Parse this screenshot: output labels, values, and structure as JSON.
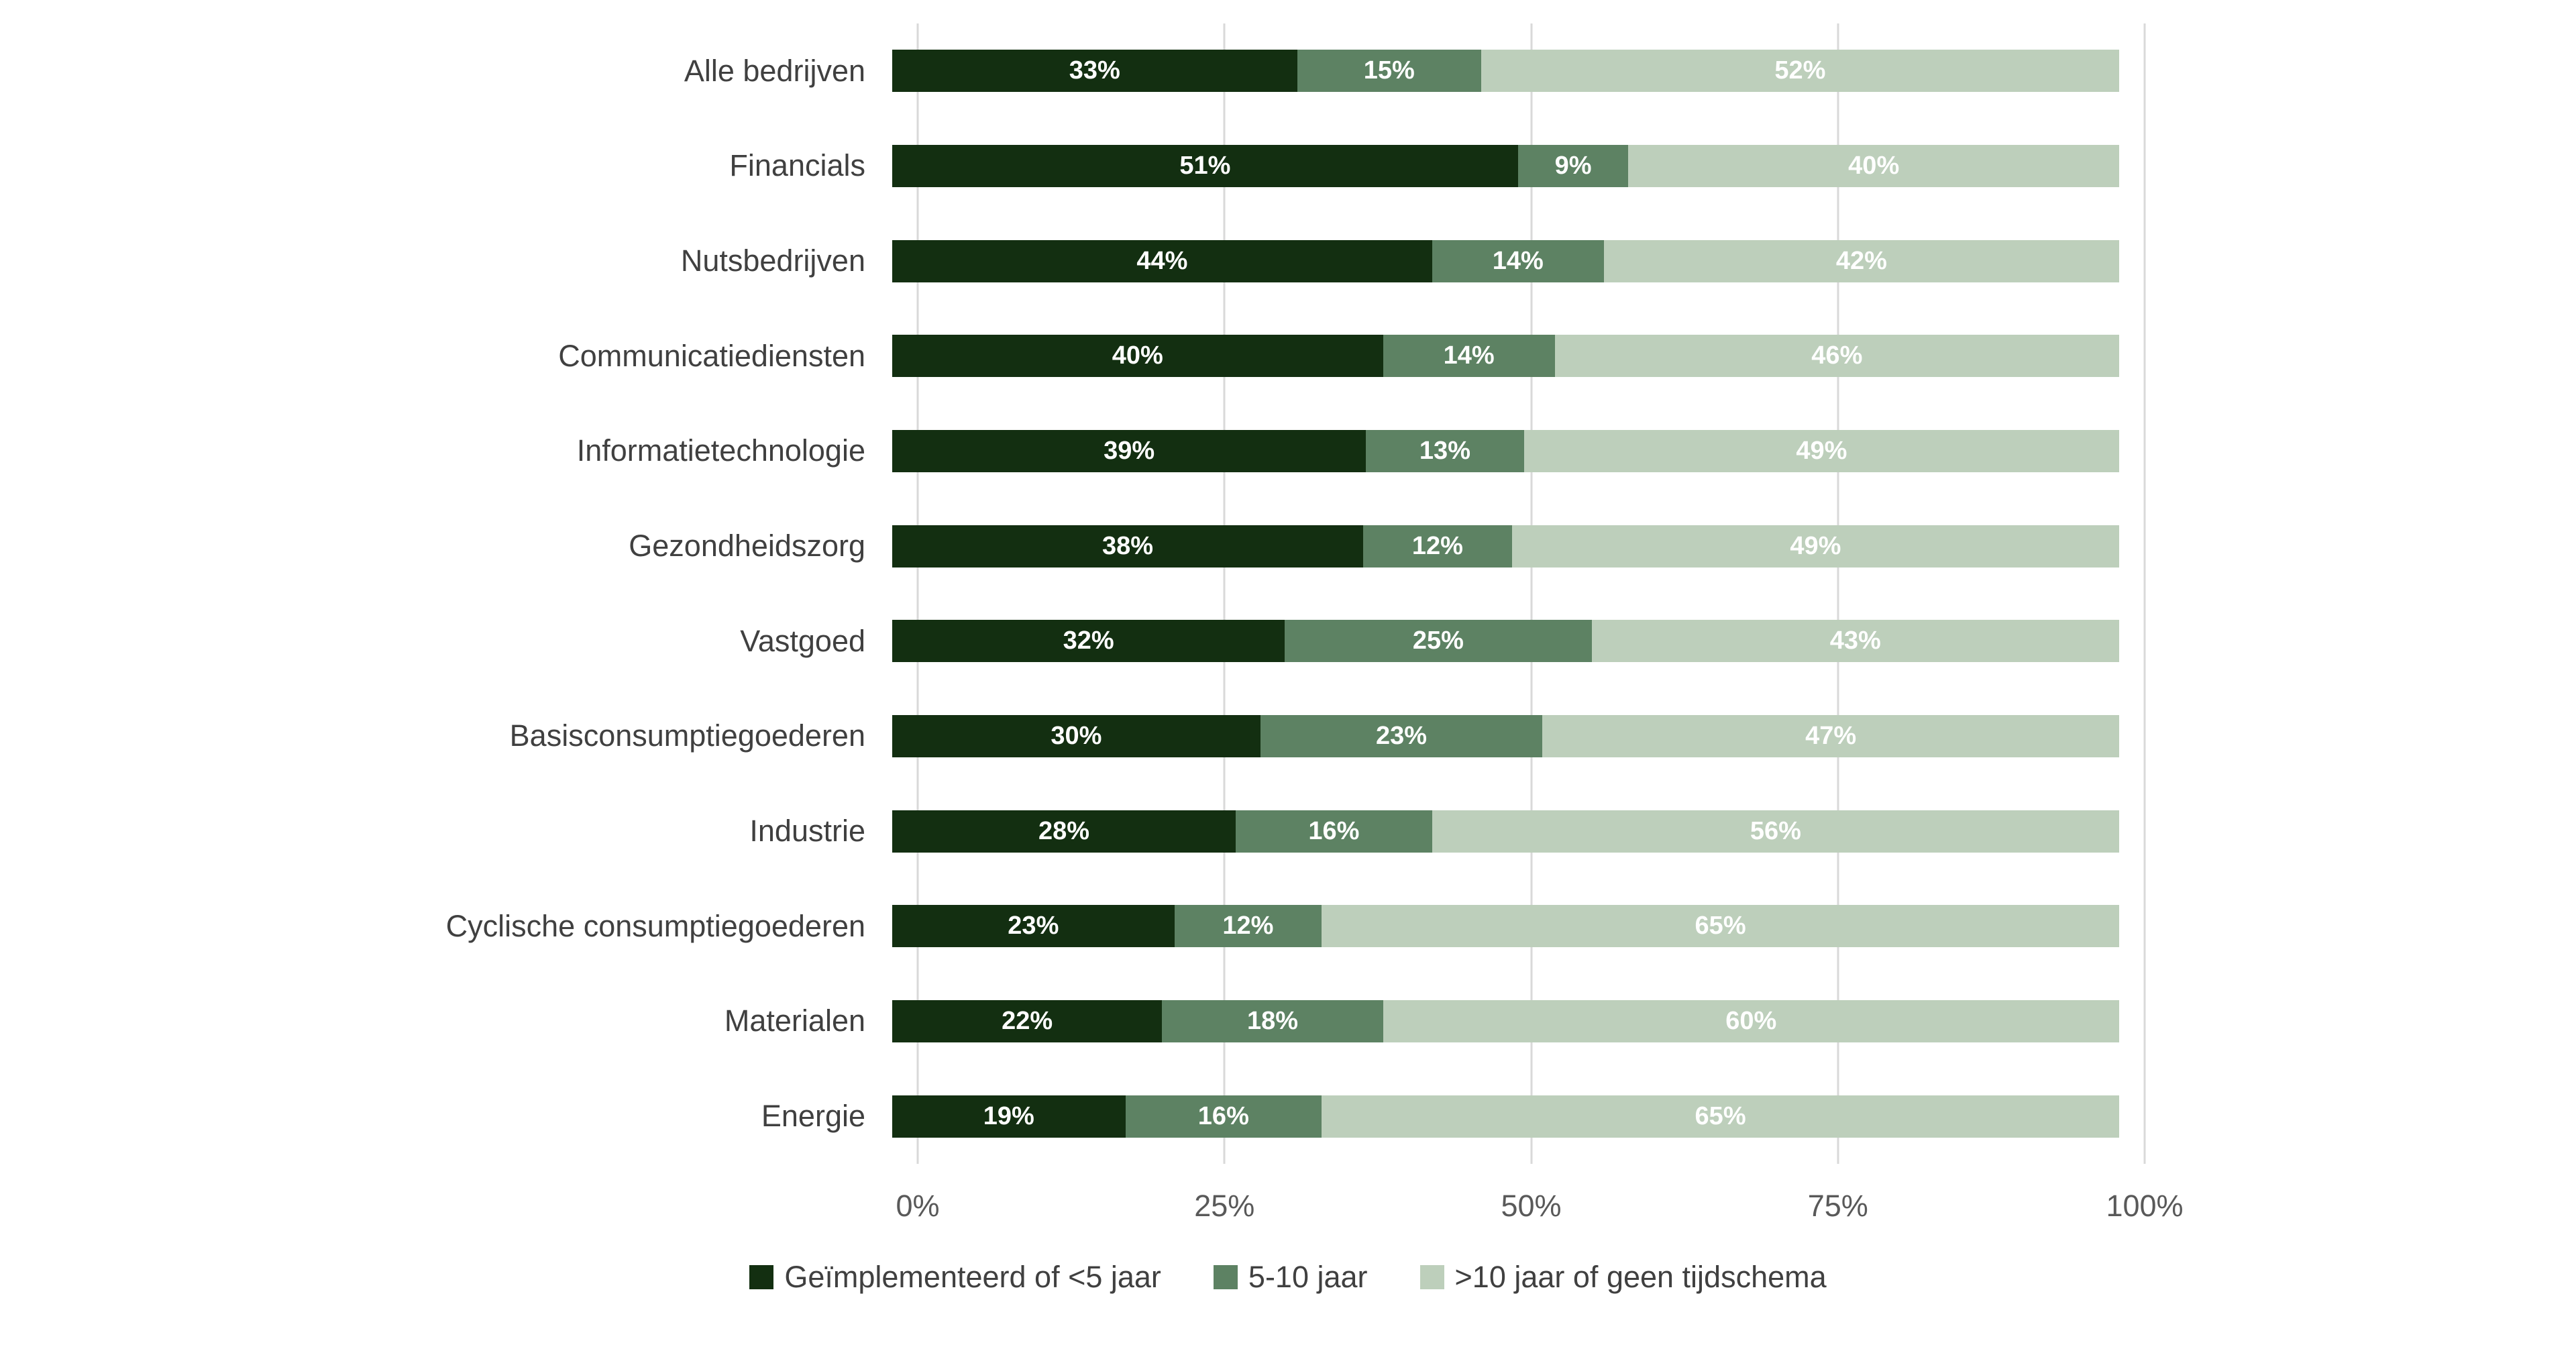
{
  "chart_data": {
    "type": "bar",
    "orientation": "horizontal-stacked",
    "title": "",
    "xlabel": "",
    "ylabel": "",
    "categories": [
      "Alle bedrijven",
      "Financials",
      "Nutsbedrijven",
      "Communicatiediensten",
      "Informatietechnologie",
      "Gezondheidszorg",
      "Vastgoed",
      "Basisconsumptiegoederen",
      "Industrie",
      "Cyclische consumptiegoederen",
      "Materialen",
      "Energie"
    ],
    "series": [
      {
        "name": "Geïmplementeerd of <5 jaar",
        "color": "#132f11",
        "values": [
          33,
          51,
          44,
          40,
          39,
          38,
          32,
          30,
          28,
          23,
          22,
          19
        ]
      },
      {
        "name": "5-10 jaar",
        "color": "#5d8263",
        "values": [
          15,
          9,
          14,
          14,
          13,
          12,
          25,
          23,
          16,
          12,
          18,
          16
        ]
      },
      {
        "name": ">10 jaar of geen tijdschema",
        "color": "#bdcfbb",
        "values": [
          52,
          40,
          42,
          46,
          49,
          49,
          43,
          47,
          56,
          65,
          60,
          65
        ]
      }
    ],
    "value_label_suffix": "%",
    "x_axis": {
      "min": 0,
      "max": 100,
      "ticks": [
        "0%",
        "25%",
        "50%",
        "75%",
        "100%"
      ],
      "tick_positions_pct": [
        0,
        25,
        50,
        75,
        100
      ]
    },
    "grid": "vertical",
    "legend_position": "bottom"
  },
  "colors": {
    "background": "#ffffff",
    "gridline": "#d9d9d9",
    "category_text": "#404040",
    "tick_text": "#595959",
    "legend_text": "#404040",
    "bar_label_text": "#ffffff"
  }
}
